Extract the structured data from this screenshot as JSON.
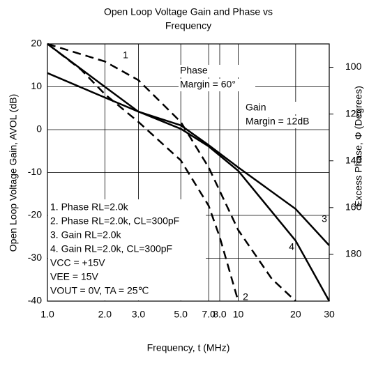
{
  "chart_data": {
    "type": "line",
    "title": [
      "Open Loop Voltage Gain and Phase vs",
      "Frequency"
    ],
    "x_label": "Frequency, t (MHz)",
    "y_label": "Open Loop Voltage Gain, AVOL (dB)",
    "y2_label": "Excess Phase, Φ (Degrees)",
    "xscale": "log",
    "xlim": [
      1,
      30
    ],
    "xticks": [
      {
        "value": 1,
        "label": "1.0"
      },
      {
        "value": 2,
        "label": "2.0"
      },
      {
        "value": 3,
        "label": "3.0"
      },
      {
        "value": 5,
        "label": "5.0"
      },
      {
        "value": 7,
        "label": "7.0"
      },
      {
        "value": 8,
        "label": "8.0"
      },
      10,
      20,
      30
    ],
    "ylim": [
      -40,
      20
    ],
    "yticks": [
      -40,
      -30,
      -20,
      -10,
      0,
      10,
      20
    ],
    "y2lim": [
      200,
      90
    ],
    "y2ticks": [
      100,
      120,
      140,
      160,
      180
    ],
    "grid": true,
    "series": [
      {
        "name": "1. Phase RL=2.0k",
        "color": "#000000",
        "linestyle": "dashed",
        "axis": "y2",
        "x": [
          1,
          2,
          3,
          5,
          7,
          10,
          15,
          20
        ],
        "values": [
          90,
          97.5,
          105.5,
          123.4,
          142.8,
          169.6,
          190.5,
          200
        ]
      },
      {
        "name": "2. Phase RL=2.0k, CL=300pF",
        "color": "#000000",
        "linestyle": "dashed",
        "axis": "y2",
        "x": [
          1,
          1.5,
          2,
          3,
          5,
          7,
          8,
          10
        ],
        "values": [
          90,
          101,
          111.5,
          123.4,
          139.8,
          159.2,
          172.6,
          200
        ]
      },
      {
        "name": "3. Gain RL=2.0k",
        "color": "#000000",
        "linestyle": "solid",
        "x": [
          1,
          2,
          3,
          5,
          7,
          10,
          20,
          30
        ],
        "values": [
          13.2,
          7.5,
          4.2,
          1.0,
          -3.6,
          -8.8,
          -18.5,
          -27
        ]
      },
      {
        "name": "4. Gain RL=2.0k, CL=300pF",
        "color": "#000000",
        "linestyle": "solid",
        "x": [
          1,
          2,
          3,
          5,
          7,
          10,
          20,
          30
        ],
        "values": [
          20,
          10,
          4.2,
          0.2,
          -3.9,
          -9.6,
          -25.9,
          -40
        ]
      }
    ],
    "curve_labels": [
      "1",
      "2",
      "3",
      "4"
    ],
    "notes": [
      "VCC = +15V",
      "VEE = 15V",
      "VOUT = 0V, TA = 25℃"
    ],
    "annotations": [
      [
        "Phase",
        "Margin = 60°"
      ],
      [
        "Gain",
        "Margin = 12dB"
      ]
    ]
  }
}
